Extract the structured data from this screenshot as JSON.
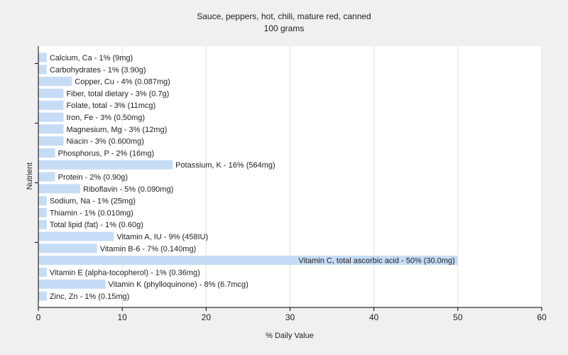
{
  "chart_data": {
    "type": "bar",
    "orientation": "horizontal",
    "title": "Sauce, peppers, hot, chili, mature red, canned",
    "subtitle": "100 grams",
    "xlabel": "% Daily Value",
    "ylabel": "Nutrient",
    "xlim": [
      0,
      60
    ],
    "xticks": [
      0,
      10,
      20,
      30,
      40,
      50,
      60
    ],
    "grid": "vertical",
    "bar_color": "#c6dcf5",
    "categories": [
      "Calcium, Ca - 1% (9mg)",
      "Carbohydrates - 1% (3.90g)",
      "Copper, Cu - 4% (0.087mg)",
      "Fiber, total dietary - 3% (0.7g)",
      "Folate, total - 3% (11mcg)",
      "Iron, Fe - 3% (0.50mg)",
      "Magnesium, Mg - 3% (12mg)",
      "Niacin - 3% (0.600mg)",
      "Phosphorus, P - 2% (16mg)",
      "Potassium, K - 16% (564mg)",
      "Protein - 2% (0.90g)",
      "Riboflavin - 5% (0.090mg)",
      "Sodium, Na - 1% (25mg)",
      "Thiamin - 1% (0.010mg)",
      "Total lipid (fat) - 1% (0.60g)",
      "Vitamin A, IU - 9% (458IU)",
      "Vitamin B-6 - 7% (0.140mg)",
      "Vitamin C, total ascorbic acid - 50% (30.0mg)",
      "Vitamin E (alpha-tocopherol) - 1% (0.36mg)",
      "Vitamin K (phylloquinone) - 8% (6.7mcg)",
      "Zinc, Zn - 1% (0.15mg)"
    ],
    "values": [
      1,
      1,
      4,
      3,
      3,
      3,
      3,
      3,
      2,
      16,
      2,
      5,
      1,
      1,
      1,
      9,
      7,
      50,
      1,
      8,
      1
    ]
  }
}
